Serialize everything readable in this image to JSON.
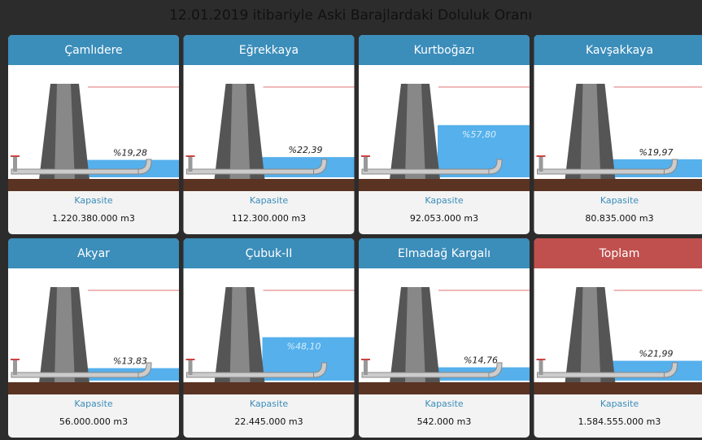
{
  "title": "12.01.2019 itibariyle Aski Barajlardaki Doluluk Oranı",
  "dams": [
    {
      "name": "Çamlıdere",
      "percent": 19.28,
      "percent_label": "%19,28",
      "capacity_label": "Kapasite",
      "capacity": "1.220.380.000 m3"
    },
    {
      "name": "Eğrekkaya",
      "percent": 22.39,
      "percent_label": "%22,39",
      "capacity_label": "Kapasite",
      "capacity": "112.300.000 m3"
    },
    {
      "name": "Kurtboğazı",
      "percent": 57.8,
      "percent_label": "%57,80",
      "capacity_label": "Kapasite",
      "capacity": "92.053.000 m3"
    },
    {
      "name": "Kavşakkaya",
      "percent": 19.97,
      "percent_label": "%19,97",
      "capacity_label": "Kapasite",
      "capacity": "80.835.000 m3"
    },
    {
      "name": "Akyar",
      "percent": 13.83,
      "percent_label": "%13,83",
      "capacity_label": "Kapasite",
      "capacity": "56.000.000 m3"
    },
    {
      "name": "Çubuk-II",
      "percent": 48.1,
      "percent_label": "%48,10",
      "capacity_label": "Kapasite",
      "capacity": "22.445.000 m3"
    },
    {
      "name": "Elmadağ Kargalı",
      "percent": 14.76,
      "percent_label": "%14,76",
      "capacity_label": "Kapasite",
      "capacity": "542.000 m3"
    },
    {
      "name": "Toplam",
      "percent": 21.99,
      "percent_label": "%21,99",
      "capacity_label": "Kapasite",
      "capacity": "1.584.555.000 m3",
      "highlight": true
    }
  ]
}
